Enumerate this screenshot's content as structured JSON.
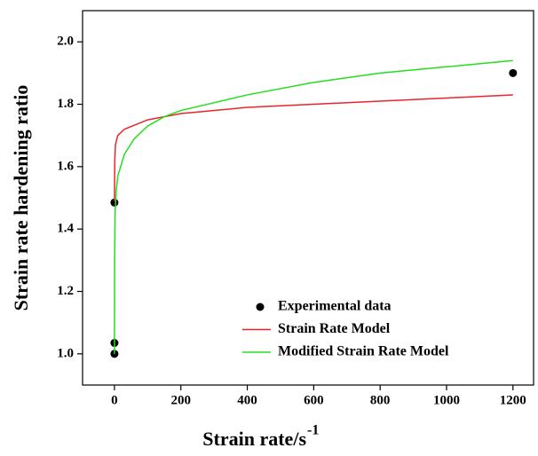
{
  "chart_data": {
    "type": "line",
    "x_label": "Strain rate/s",
    "x_label_superscript": "-1",
    "y_label": "Strain rate hardening ratio",
    "xlim": [
      -96,
      1262
    ],
    "ylim": [
      0.9,
      2.1
    ],
    "xticks": [
      0,
      200,
      400,
      600,
      800,
      1000,
      1200
    ],
    "yticks": [
      {
        "value": 1.0,
        "label": "1.0"
      },
      {
        "value": 1.2,
        "label": "1.2"
      },
      {
        "value": 1.4,
        "label": "1.4"
      },
      {
        "value": 1.6,
        "label": "1.6"
      },
      {
        "value": 1.8,
        "label": "1.8"
      },
      {
        "value": 2.0,
        "label": "2.0"
      }
    ],
    "legend": "lower right",
    "series": [
      {
        "name": "Experimental data",
        "type": "scatter",
        "color": "#000000",
        "x": [
          0,
          0,
          0,
          1200
        ],
        "values": [
          1.0,
          1.035,
          1.485,
          1.9
        ]
      },
      {
        "name": "Strain Rate Model",
        "type": "line",
        "color": "#e8262b",
        "x": [
          0,
          1,
          3,
          10,
          30,
          100,
          200,
          400,
          600,
          800,
          1000,
          1200
        ],
        "values": [
          1.49,
          1.62,
          1.67,
          1.7,
          1.72,
          1.75,
          1.77,
          1.79,
          1.8,
          1.81,
          1.82,
          1.83
        ]
      },
      {
        "name": "Modified Strain Rate Model",
        "type": "line",
        "color": "#22e01e",
        "x": [
          0,
          0.5,
          2,
          5,
          10,
          30,
          60,
          100,
          150,
          200,
          400,
          600,
          800,
          1000,
          1200
        ],
        "values": [
          1.0,
          1.3,
          1.45,
          1.52,
          1.57,
          1.64,
          1.69,
          1.73,
          1.76,
          1.78,
          1.83,
          1.87,
          1.9,
          1.92,
          1.94
        ]
      }
    ]
  }
}
